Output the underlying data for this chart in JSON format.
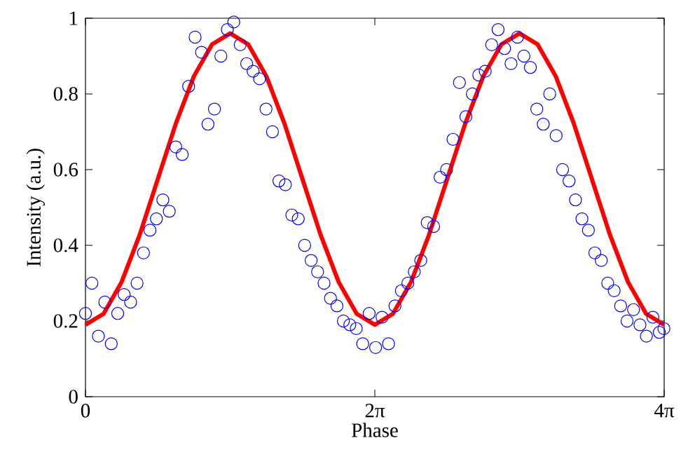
{
  "chart_data": {
    "type": "scatter",
    "xlabel": "Phase",
    "ylabel": "Intensity (a.u.)",
    "xlim": [
      0,
      12.566
    ],
    "ylim": [
      0,
      1
    ],
    "xticks": [
      0,
      {
        "value": 6.283,
        "label": "2π"
      },
      {
        "value": 12.566,
        "label": "4π"
      }
    ],
    "yticks": [
      0,
      0.2,
      0.4,
      0.6,
      0.8,
      1
    ],
    "series": [
      {
        "color": "#0000ff",
        "marker": "circle",
        "x": [
          0,
          0.14,
          0.28,
          0.42,
          0.56,
          0.7,
          0.84,
          0.98,
          1.12,
          1.26,
          1.4,
          1.54,
          1.68,
          1.82,
          1.96,
          2.1,
          2.24,
          2.38,
          2.52,
          2.66,
          2.8,
          2.94,
          3.08,
          3.22,
          3.36,
          3.5,
          3.64,
          3.78,
          3.92,
          4.06,
          4.2,
          4.34,
          4.48,
          4.62,
          4.76,
          4.9,
          5.04,
          5.18,
          5.32,
          5.46,
          5.6,
          5.74,
          5.88,
          6.02,
          6.16,
          6.3,
          6.44,
          6.58,
          6.72,
          6.86,
          7.0,
          7.14,
          7.28,
          7.42,
          7.56,
          7.7,
          7.84,
          7.98,
          8.12,
          8.26,
          8.4,
          8.54,
          8.68,
          8.82,
          8.96,
          9.1,
          9.24,
          9.38,
          9.52,
          9.66,
          9.8,
          9.94,
          10.08,
          10.22,
          10.36,
          10.5,
          10.64,
          10.78,
          10.92,
          11.06,
          11.2,
          11.34,
          11.48,
          11.62,
          11.76,
          11.9,
          12.04,
          12.18,
          12.32,
          12.46,
          12.56
        ],
        "values": [
          0.22,
          0.3,
          0.16,
          0.25,
          0.14,
          0.22,
          0.27,
          0.25,
          0.3,
          0.38,
          0.44,
          0.47,
          0.52,
          0.49,
          0.66,
          0.64,
          0.82,
          0.95,
          0.91,
          0.72,
          0.76,
          0.9,
          0.97,
          0.99,
          0.93,
          0.88,
          0.86,
          0.84,
          0.76,
          0.7,
          0.57,
          0.56,
          0.48,
          0.47,
          0.4,
          0.36,
          0.33,
          0.3,
          0.26,
          0.24,
          0.2,
          0.19,
          0.18,
          0.14,
          0.22,
          0.13,
          0.21,
          0.14,
          0.24,
          0.28,
          0.3,
          0.33,
          0.36,
          0.46,
          0.45,
          0.58,
          0.6,
          0.68,
          0.83,
          0.74,
          0.8,
          0.85,
          0.86,
          0.93,
          0.97,
          0.92,
          0.88,
          0.95,
          0.9,
          0.87,
          0.76,
          0.72,
          0.8,
          0.69,
          0.6,
          0.57,
          0.52,
          0.47,
          0.44,
          0.38,
          0.36,
          0.3,
          0.28,
          0.24,
          0.2,
          0.23,
          0.19,
          0.16,
          0.21,
          0.17,
          0.18
        ]
      },
      {
        "type": "line",
        "color": "#ff0000",
        "x": [
          0,
          0.393,
          0.785,
          1.178,
          1.571,
          1.963,
          2.356,
          2.749,
          3.142,
          3.534,
          3.927,
          4.32,
          4.712,
          5.105,
          5.498,
          5.89,
          6.283,
          6.676,
          7.069,
          7.461,
          7.854,
          8.247,
          8.639,
          9.032,
          9.425,
          9.817,
          10.21,
          10.603,
          10.996,
          11.388,
          11.781,
          12.174,
          12.566
        ],
        "values": [
          0.19,
          0.219,
          0.303,
          0.428,
          0.575,
          0.722,
          0.847,
          0.931,
          0.96,
          0.931,
          0.847,
          0.722,
          0.575,
          0.428,
          0.303,
          0.219,
          0.19,
          0.219,
          0.303,
          0.428,
          0.575,
          0.722,
          0.847,
          0.931,
          0.96,
          0.931,
          0.847,
          0.722,
          0.575,
          0.428,
          0.303,
          0.219,
          0.19
        ]
      }
    ]
  }
}
